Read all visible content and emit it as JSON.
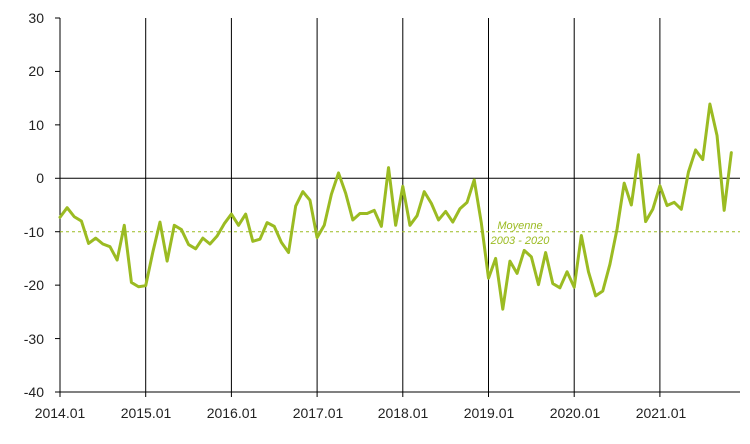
{
  "chart_data": {
    "type": "line",
    "title": "",
    "xlabel": "",
    "ylabel": "",
    "ylim": [
      -40,
      30
    ],
    "yticks": [
      30,
      20,
      10,
      0,
      -10,
      -20,
      -30,
      -40
    ],
    "x_tick_labels": [
      "2014.01",
      "2015.01",
      "2016.01",
      "2017.01",
      "2018.01",
      "2019.01",
      "2020.01",
      "2021.01"
    ],
    "x_start": "2014-01",
    "x_end_month_index": 100,
    "grid": "vertical lines at each year start",
    "colors": {
      "series": "#9bbb22",
      "average": "#9bbb22",
      "axis": "#000000",
      "zero_line": "#000000",
      "year_lines": "#000000"
    },
    "series": [
      {
        "values": [
          -7.3,
          -5.5,
          -7.2,
          -8.0,
          -12.2,
          -11.2,
          -12.3,
          -12.8,
          -15.3,
          -8.8,
          -19.5,
          -20.3,
          -20.1,
          -13.8,
          -8.2,
          -15.5,
          -8.8,
          -9.6,
          -12.4,
          -13.2,
          -11.2,
          -12.3,
          -10.8,
          -8.5,
          -6.7,
          -8.8,
          -6.7,
          -11.8,
          -11.4,
          -8.3,
          -9.0,
          -12.0,
          -13.9,
          -5.2,
          -2.5,
          -4.1,
          -11.1,
          -8.8,
          -3.0,
          1.0,
          -2.8,
          -7.8,
          -6.6,
          -6.6,
          -6.0,
          -9.0,
          2.0,
          -8.8,
          -1.5,
          -8.8,
          -7.0,
          -2.5,
          -4.7,
          -7.8,
          -6.2,
          -8.2,
          -5.7,
          -4.5,
          -0.3,
          -8.4,
          -18.7,
          -15.0,
          -24.5,
          -15.5,
          -17.8,
          -13.5,
          -14.7,
          -19.9,
          -13.9,
          -19.7,
          -20.5,
          -17.5,
          -20.4,
          -10.7,
          -17.5,
          -22.0,
          -21.1,
          -16.1,
          -9.5,
          -0.9,
          -5.0,
          4.4,
          -8.1,
          -5.8,
          -1.4,
          -5.1,
          -4.5,
          -5.8,
          1.2,
          5.3,
          3.5,
          13.9,
          8.0,
          -6.0,
          4.8
        ]
      }
    ],
    "reference_line": {
      "value": -10,
      "label_line1": "Moyenne",
      "label_line2": "2003 - 2020"
    }
  }
}
